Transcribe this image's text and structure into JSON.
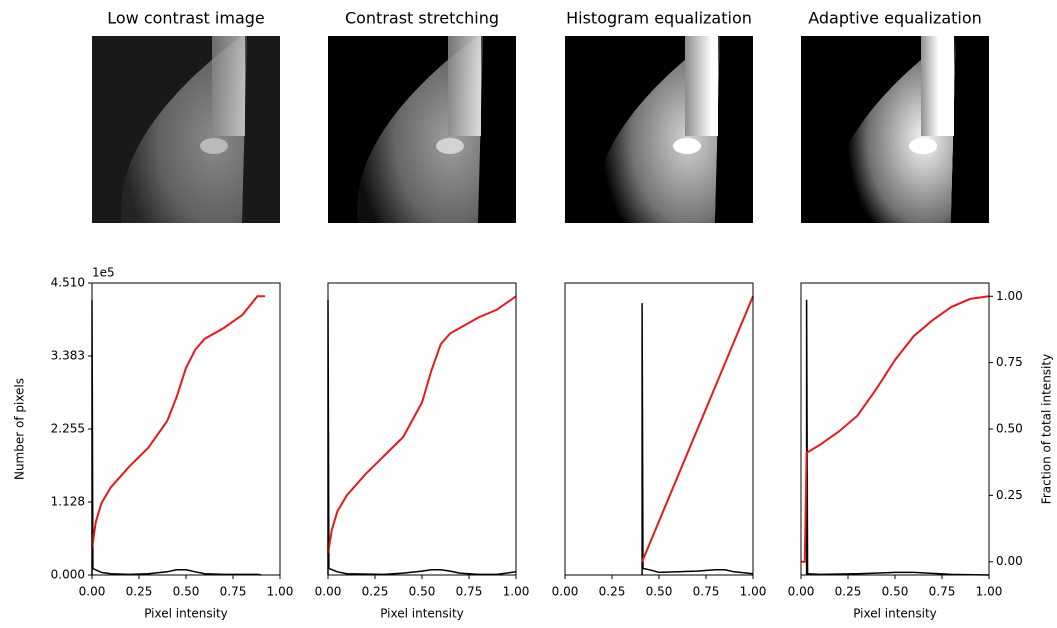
{
  "chart_data": [
    {
      "type": "line",
      "title": "Low contrast image",
      "xlabel": "Pixel intensity",
      "ylabel": "Number of pixels",
      "offset_label": "1e5",
      "xlim": [
        0,
        1
      ],
      "xticks": [
        {
          "value": 0,
          "label": "0.00"
        },
        0.25,
        {
          "value": 0.5,
          "label": "0.50"
        },
        0.75,
        {
          "value": 1,
          "label": "1.00"
        }
      ],
      "ylim": [
        0,
        4.51
      ],
      "yticks": [
        {
          "value": 0,
          "label": "0.000"
        },
        1.128,
        2.255,
        3.383,
        {
          "value": 4.51,
          "label": "4.510"
        }
      ],
      "y2lim": [
        -0.05,
        1.05
      ],
      "series": [
        {
          "color": "#000000",
          "x": [
            0,
            0,
            0.005,
            0.05,
            0.1,
            0.2,
            0.3,
            0.4,
            0.45,
            0.5,
            0.55,
            0.6,
            0.7,
            0.8,
            0.88,
            0.9
          ],
          "values": [
            0,
            4.25,
            0.1,
            0.04,
            0.02,
            0.01,
            0.02,
            0.05,
            0.08,
            0.08,
            0.05,
            0.02,
            0.01,
            0.01,
            0.01,
            0
          ]
        },
        {
          "color": "#e41a1c",
          "axis": "y2",
          "x": [
            0,
            0.02,
            0.05,
            0.1,
            0.2,
            0.3,
            0.4,
            0.45,
            0.5,
            0.55,
            0.6,
            0.7,
            0.8,
            0.88,
            0.92
          ],
          "values": [
            0.05,
            0.15,
            0.22,
            0.28,
            0.36,
            0.43,
            0.53,
            0.62,
            0.73,
            0.8,
            0.84,
            0.88,
            0.93,
            1.0,
            1.0
          ]
        }
      ]
    },
    {
      "type": "line",
      "title": "Contrast stretching",
      "xlabel": "Pixel intensity",
      "xlim": [
        0,
        1
      ],
      "xticks": [
        {
          "value": 0,
          "label": "0.00"
        },
        0.25,
        {
          "value": 0.5,
          "label": "0.50"
        },
        0.75,
        {
          "value": 1,
          "label": "1.00"
        }
      ],
      "ylim": [
        0,
        4.51
      ],
      "y2lim": [
        -0.05,
        1.05
      ],
      "series": [
        {
          "color": "#000000",
          "x": [
            0,
            0,
            0.005,
            0.05,
            0.1,
            0.3,
            0.4,
            0.5,
            0.55,
            0.6,
            0.65,
            0.7,
            0.8,
            0.9,
            1.0
          ],
          "values": [
            0,
            4.25,
            0.1,
            0.05,
            0.02,
            0.01,
            0.03,
            0.06,
            0.08,
            0.08,
            0.06,
            0.03,
            0.01,
            0.01,
            0.05
          ]
        },
        {
          "color": "#e41a1c",
          "axis": "y2",
          "x": [
            0,
            0.02,
            0.05,
            0.1,
            0.2,
            0.3,
            0.4,
            0.5,
            0.55,
            0.6,
            0.65,
            0.7,
            0.8,
            0.9,
            1.0
          ],
          "values": [
            0.03,
            0.12,
            0.19,
            0.25,
            0.33,
            0.4,
            0.47,
            0.6,
            0.72,
            0.82,
            0.86,
            0.88,
            0.92,
            0.95,
            1.0
          ]
        }
      ]
    },
    {
      "type": "line",
      "title": "Histogram equalization",
      "xlim": [
        0,
        1
      ],
      "xticks": [
        {
          "value": 0,
          "label": "0.00"
        },
        0.25,
        {
          "value": 0.5,
          "label": "0.50"
        },
        0.75,
        {
          "value": 1,
          "label": "1.00"
        }
      ],
      "ylim": [
        0,
        4.51
      ],
      "y2lim": [
        -0.05,
        1.05
      ],
      "series": [
        {
          "color": "#000000",
          "x": [
            0.41,
            0.41,
            0.415,
            0.45,
            0.5,
            0.6,
            0.7,
            0.8,
            0.85,
            0.9,
            1.0
          ],
          "values": [
            0,
            4.2,
            0.1,
            0.08,
            0.04,
            0.05,
            0.06,
            0.08,
            0.08,
            0.05,
            0.02
          ]
        },
        {
          "color": "#e41a1c",
          "axis": "y2",
          "x": [
            0.41,
            1.0
          ],
          "values": [
            0.0,
            1.0
          ]
        }
      ]
    },
    {
      "type": "line",
      "title": "Adaptive equalization",
      "xlabel": "Pixel intensity",
      "y2label": "Fraction of total intensity",
      "xlim": [
        0,
        1
      ],
      "xticks": [
        {
          "value": 0,
          "label": "0.00"
        },
        0.25,
        {
          "value": 0.5,
          "label": "0.50"
        },
        0.75,
        {
          "value": 1,
          "label": "1.00"
        }
      ],
      "ylim": [
        0,
        4.51
      ],
      "y2lim": [
        -0.05,
        1.05
      ],
      "y2ticks": [
        {
          "value": 0,
          "label": "0.00"
        },
        0.25,
        {
          "value": 0.5,
          "label": "0.50"
        },
        0.75,
        {
          "value": 1,
          "label": "1.00"
        }
      ],
      "series": [
        {
          "color": "#000000",
          "x": [
            0.03,
            0.03,
            0.035,
            0.1,
            0.3,
            0.5,
            0.6,
            0.8,
            1.0
          ],
          "values": [
            0,
            4.25,
            0.02,
            0.01,
            0.02,
            0.04,
            0.04,
            0.01,
            0
          ]
        },
        {
          "color": "#e41a1c",
          "axis": "y2",
          "x": [
            0,
            0.02,
            0.03,
            0.1,
            0.2,
            0.3,
            0.4,
            0.5,
            0.6,
            0.7,
            0.8,
            0.9,
            1.0
          ],
          "values": [
            0,
            0,
            0.41,
            0.44,
            0.49,
            0.55,
            0.65,
            0.76,
            0.85,
            0.91,
            0.96,
            0.99,
            1.0
          ]
        }
      ]
    }
  ]
}
